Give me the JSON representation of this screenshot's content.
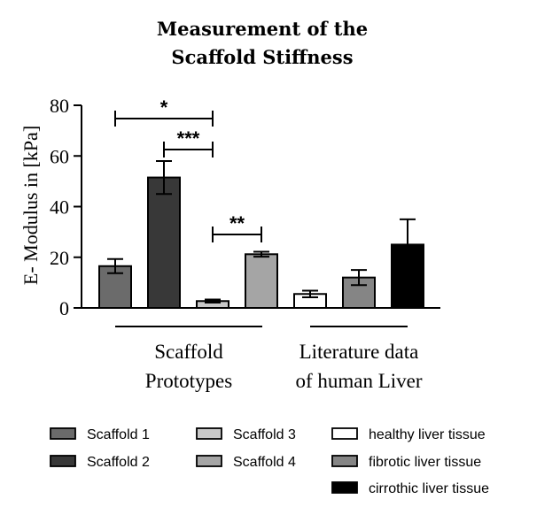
{
  "chart_data": {
    "type": "bar",
    "title_lines": [
      "Measurement of the",
      "Scaffold Stiffness"
    ],
    "ylabel": "E- Modulus in [kPa]",
    "ylim": [
      0,
      80
    ],
    "yticks": [
      0,
      20,
      40,
      60,
      80
    ],
    "bars": [
      {
        "name": "Scaffold 1",
        "value": 16.5,
        "error": 2.8,
        "color": "#6b6b6b"
      },
      {
        "name": "Scaffold 2",
        "value": 51.5,
        "error": 6.5,
        "color": "#383838"
      },
      {
        "name": "Scaffold 3",
        "value": 2.7,
        "error": 0.6,
        "color": "#c8c8c8"
      },
      {
        "name": "Scaffold 4",
        "value": 21.2,
        "error": 1.0,
        "color": "#a5a5a5"
      },
      {
        "name": "healthy liver tissue",
        "value": 5.5,
        "error": 1.3,
        "color": "#ffffff"
      },
      {
        "name": "fibrotic liver tissue",
        "value": 12.0,
        "error": 3.0,
        "color": "#858585"
      },
      {
        "name": "cirrothic liver tissue",
        "value": 25.0,
        "error": 10.0,
        "color": "#000000"
      }
    ],
    "groups": [
      {
        "label_lines": [
          "Scaffold",
          "Prototypes"
        ],
        "from": 0,
        "to": 3
      },
      {
        "label_lines": [
          "Literature data",
          "of human Liver"
        ],
        "from": 4,
        "to": 6
      }
    ],
    "significance": [
      {
        "label": "*",
        "from": 0,
        "to": 2
      },
      {
        "label": "***",
        "from": 1,
        "to": 2
      },
      {
        "label": "**",
        "from": 2,
        "to": 3
      }
    ],
    "legend_position": "bottom"
  }
}
